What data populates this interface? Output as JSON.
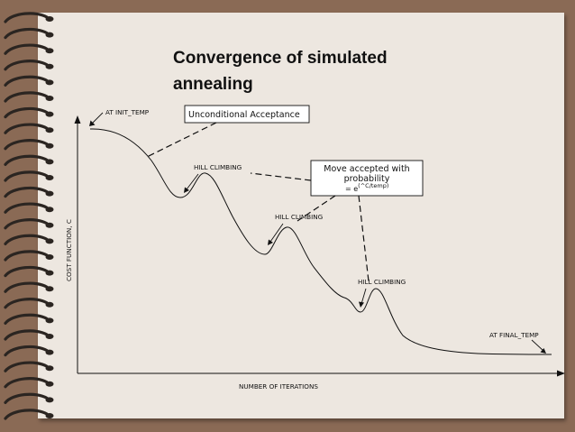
{
  "slide": {
    "title": "Convergence of simulated annealing"
  },
  "diagram": {
    "y_axis_label": "COST FUNCTION, C",
    "x_axis_label": "NUMBER OF ITERATIONS",
    "labels": {
      "init_temp": "AT INIT_TEMP",
      "hill_climbing_1": "HILL CLIMBING",
      "hill_climbing_2": "HILL CLIMBING",
      "hill_climbing_3": "HILL CLIMBING",
      "final_temp": "AT FINAL_TEMP"
    },
    "unconditional_box": "Unconditional Acceptance",
    "probability_box": {
      "line1": "Move accepted with",
      "line2": "probability",
      "formula_prefix": "= e",
      "formula_exponent": "(^C/temp)"
    }
  },
  "colors": {
    "frame": "#8a6a55",
    "paper": "#ede7e0",
    "ink": "#111111",
    "ring": "#2b2521"
  },
  "icons": {
    "binder_rings": "spiral-binding-icon"
  }
}
